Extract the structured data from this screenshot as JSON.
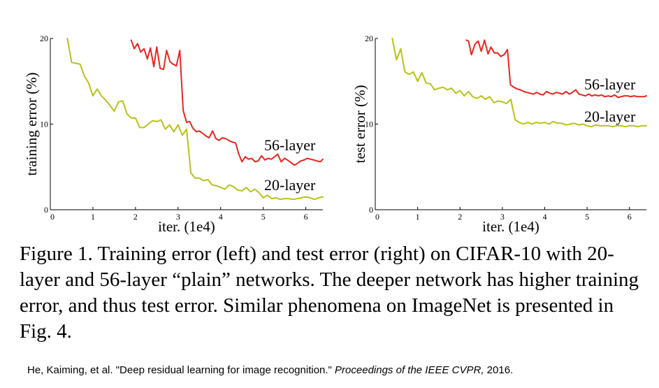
{
  "chart_data": [
    {
      "type": "line",
      "title": "",
      "xlabel": "iter. (1e4)",
      "ylabel": "training error (%)",
      "xlim": [
        0,
        6.4
      ],
      "ylim": [
        0,
        20
      ],
      "x_ticks": [
        0,
        1,
        2,
        3,
        4,
        5,
        6
      ],
      "y_ticks": [
        0,
        10,
        20
      ],
      "legend": "inline-right",
      "series": [
        {
          "name": "56-layer",
          "color": "#e8261f",
          "x": [
            1.9,
            1.97,
            2.05,
            2.12,
            2.2,
            2.28,
            2.35,
            2.43,
            2.5,
            2.58,
            2.66,
            2.73,
            2.81,
            2.88,
            2.96,
            3.04,
            3.12,
            3.2,
            3.27,
            3.35,
            3.43,
            3.5,
            3.58,
            3.66,
            3.73,
            3.81,
            3.89,
            3.96,
            4.04,
            4.12,
            4.19,
            4.27,
            4.35,
            4.42,
            4.5,
            4.58,
            4.65,
            4.73,
            4.81,
            4.88,
            4.96,
            5.04,
            5.11,
            5.19,
            5.27,
            5.34,
            5.42,
            5.5,
            5.57,
            5.65,
            5.73,
            5.8,
            5.88,
            5.96,
            6.03,
            6.11,
            6.19,
            6.26,
            6.34,
            6.4
          ],
          "values": [
            19.8,
            18.8,
            19.4,
            18.4,
            18.8,
            17.6,
            18.9,
            16.7,
            19.0,
            16.5,
            16.4,
            18.6,
            17.3,
            17.0,
            16.8,
            18.6,
            11.6,
            10.2,
            10.3,
            9.5,
            9.1,
            9.2,
            8.9,
            8.6,
            8.4,
            9.2,
            8.3,
            8.1,
            8.4,
            8.3,
            8.1,
            7.9,
            7.8,
            6.6,
            5.6,
            6.2,
            5.9,
            6.0,
            5.6,
            5.7,
            6.3,
            5.8,
            6.0,
            5.9,
            6.2,
            6.5,
            5.6,
            6.0,
            5.8,
            5.5,
            5.2,
            5.4,
            5.7,
            5.8,
            6.0,
            5.9,
            5.8,
            5.7,
            5.6,
            5.9
          ]
        },
        {
          "name": "20-layer",
          "color": "#b8c217",
          "x": [
            0.4,
            0.5,
            0.6,
            0.7,
            0.8,
            0.9,
            1.0,
            1.1,
            1.2,
            1.3,
            1.4,
            1.5,
            1.6,
            1.7,
            1.8,
            1.9,
            2.0,
            2.1,
            2.2,
            2.3,
            2.4,
            2.5,
            2.6,
            2.7,
            2.8,
            2.9,
            3.0,
            3.1,
            3.2,
            3.3,
            3.4,
            3.5,
            3.6,
            3.7,
            3.8,
            3.9,
            4.0,
            4.1,
            4.2,
            4.3,
            4.4,
            4.5,
            4.6,
            4.7,
            4.8,
            4.9,
            5.0,
            5.1,
            5.2,
            5.3,
            5.4,
            5.5,
            5.6,
            5.7,
            5.8,
            5.9,
            6.0,
            6.1,
            6.2,
            6.3,
            6.4
          ],
          "values": [
            20.0,
            17.2,
            17.1,
            17.0,
            15.6,
            14.8,
            13.3,
            14.1,
            13.3,
            12.8,
            12.2,
            11.5,
            12.6,
            12.7,
            11.2,
            10.7,
            10.7,
            9.6,
            9.6,
            10.0,
            10.4,
            10.3,
            10.5,
            9.4,
            9.9,
            9.1,
            9.9,
            8.7,
            9.4,
            4.3,
            3.7,
            3.7,
            3.4,
            3.5,
            2.9,
            2.8,
            2.6,
            2.4,
            2.9,
            2.7,
            2.3,
            2.2,
            2.6,
            2.1,
            2.4,
            2.0,
            1.4,
            1.7,
            1.3,
            1.4,
            1.2,
            1.3,
            1.3,
            1.2,
            1.3,
            1.4,
            1.5,
            1.4,
            1.2,
            1.4,
            1.5
          ]
        }
      ]
    },
    {
      "type": "line",
      "title": "",
      "xlabel": "iter. (1e4)",
      "ylabel": "test error (%)",
      "xlim": [
        0,
        6.4
      ],
      "ylim": [
        0,
        20
      ],
      "x_ticks": [
        0,
        1,
        2,
        3,
        4,
        5,
        6
      ],
      "y_ticks": [
        0,
        10,
        20
      ],
      "legend": "inline-right",
      "series": [
        {
          "name": "56-layer",
          "color": "#e8261f",
          "x": [
            2.15,
            2.2,
            2.27,
            2.35,
            2.43,
            2.5,
            2.58,
            2.66,
            2.73,
            2.81,
            2.89,
            2.96,
            3.04,
            3.12,
            3.19,
            3.27,
            3.35,
            3.43,
            3.5,
            3.58,
            3.66,
            3.73,
            3.81,
            3.89,
            3.96,
            4.04,
            4.12,
            4.19,
            4.27,
            4.35,
            4.42,
            4.5,
            4.58,
            4.65,
            4.73,
            4.81,
            4.88,
            4.96,
            5.04,
            5.11,
            5.19,
            5.27,
            5.34,
            5.42,
            5.5,
            5.57,
            5.65,
            5.73,
            5.8,
            5.88,
            5.96,
            6.03,
            6.11,
            6.19,
            6.26,
            6.34,
            6.4
          ],
          "values": [
            19.8,
            19.7,
            18.1,
            19.3,
            19.7,
            18.5,
            19.8,
            18.2,
            19.0,
            18.3,
            18.3,
            17.9,
            18.1,
            18.7,
            14.6,
            14.3,
            14.1,
            14.0,
            13.8,
            13.7,
            13.6,
            13.5,
            13.7,
            13.5,
            13.4,
            13.8,
            13.6,
            13.5,
            13.7,
            13.6,
            13.5,
            13.8,
            13.5,
            13.7,
            14.0,
            13.5,
            13.4,
            13.3,
            13.5,
            13.3,
            13.4,
            13.3,
            13.4,
            13.2,
            13.3,
            13.2,
            13.4,
            13.1,
            13.2,
            13.3,
            13.3,
            13.2,
            13.3,
            13.2,
            13.2,
            13.2,
            13.3
          ]
        },
        {
          "name": "20-layer",
          "color": "#b8c217",
          "x": [
            0.4,
            0.5,
            0.6,
            0.7,
            0.8,
            0.9,
            1.0,
            1.1,
            1.2,
            1.3,
            1.4,
            1.5,
            1.6,
            1.7,
            1.8,
            1.9,
            2.0,
            2.1,
            2.2,
            2.3,
            2.4,
            2.5,
            2.6,
            2.7,
            2.8,
            2.9,
            3.0,
            3.1,
            3.2,
            3.3,
            3.4,
            3.5,
            3.6,
            3.7,
            3.8,
            3.9,
            4.0,
            4.1,
            4.2,
            4.3,
            4.4,
            4.5,
            4.6,
            4.7,
            4.8,
            4.9,
            5.0,
            5.1,
            5.2,
            5.3,
            5.4,
            5.5,
            5.6,
            5.7,
            5.8,
            5.9,
            6.0,
            6.1,
            6.2,
            6.3,
            6.4
          ],
          "values": [
            20.0,
            17.5,
            18.8,
            16.1,
            15.8,
            16.1,
            15.0,
            16.0,
            14.8,
            14.7,
            14.0,
            14.2,
            14.3,
            14.0,
            14.2,
            13.6,
            13.9,
            13.3,
            13.8,
            13.2,
            13.0,
            13.3,
            12.9,
            13.2,
            12.5,
            12.7,
            12.6,
            12.4,
            12.9,
            10.5,
            10.2,
            10.0,
            10.2,
            10.0,
            10.2,
            10.1,
            10.2,
            10.0,
            10.3,
            10.1,
            10.1,
            9.9,
            10.0,
            10.1,
            9.9,
            10.0,
            9.8,
            9.7,
            9.9,
            9.8,
            9.8,
            9.8,
            9.7,
            9.8,
            9.8,
            9.7,
            9.8,
            9.8,
            9.7,
            9.8,
            9.8
          ]
        }
      ]
    }
  ],
  "caption": "Figure 1. Training error (left) and test error (right) on CIFAR-10 with 20-layer and 56-layer “plain” networks. The deeper network has higher training error, and thus test error. Similar phenomena on ImageNet is presented in Fig. 4.",
  "citation": {
    "prefix": "He, Kaiming, et al. \"Deep residual learning for image recognition.\" ",
    "venue": "Proceedings of the IEEE CVPR,",
    "suffix": " 2016."
  }
}
